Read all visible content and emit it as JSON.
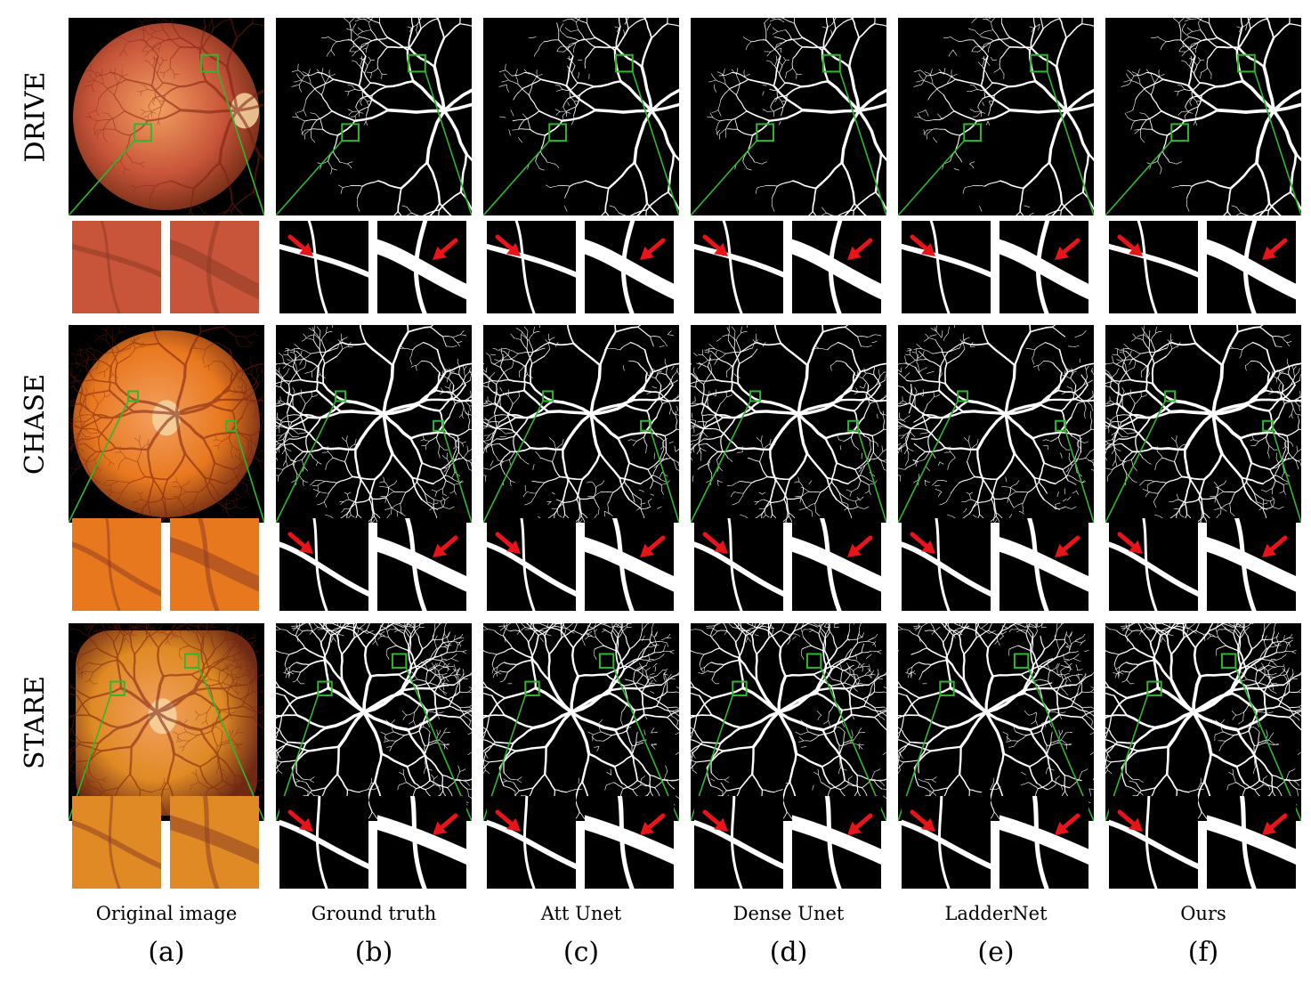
{
  "rows": [
    {
      "key": "drive",
      "label": "DRIVE"
    },
    {
      "key": "chase",
      "label": "CHASE"
    },
    {
      "key": "stare",
      "label": "STARE"
    }
  ],
  "columns": [
    {
      "key": "original",
      "caption": "Original image",
      "letter": "(a)"
    },
    {
      "key": "ground-truth",
      "caption": "Ground truth",
      "letter": "(b)"
    },
    {
      "key": "att-unet",
      "caption": "Att Unet",
      "letter": "(c)"
    },
    {
      "key": "dense-unet",
      "caption": "Dense Unet",
      "letter": "(d)"
    },
    {
      "key": "laddernet",
      "caption": "LadderNet",
      "letter": "(e)"
    },
    {
      "key": "ours",
      "caption": "Ours",
      "letter": "(f)"
    }
  ],
  "colors": {
    "zoom_box": "#2eb82e",
    "arrow": "#e8141a",
    "vessel": "#ffffff",
    "segmentation_bg": "#000000",
    "drive_fundus": "#c8553a",
    "chase_fundus": "#e8781e",
    "stare_fundus": "#df8a24"
  }
}
